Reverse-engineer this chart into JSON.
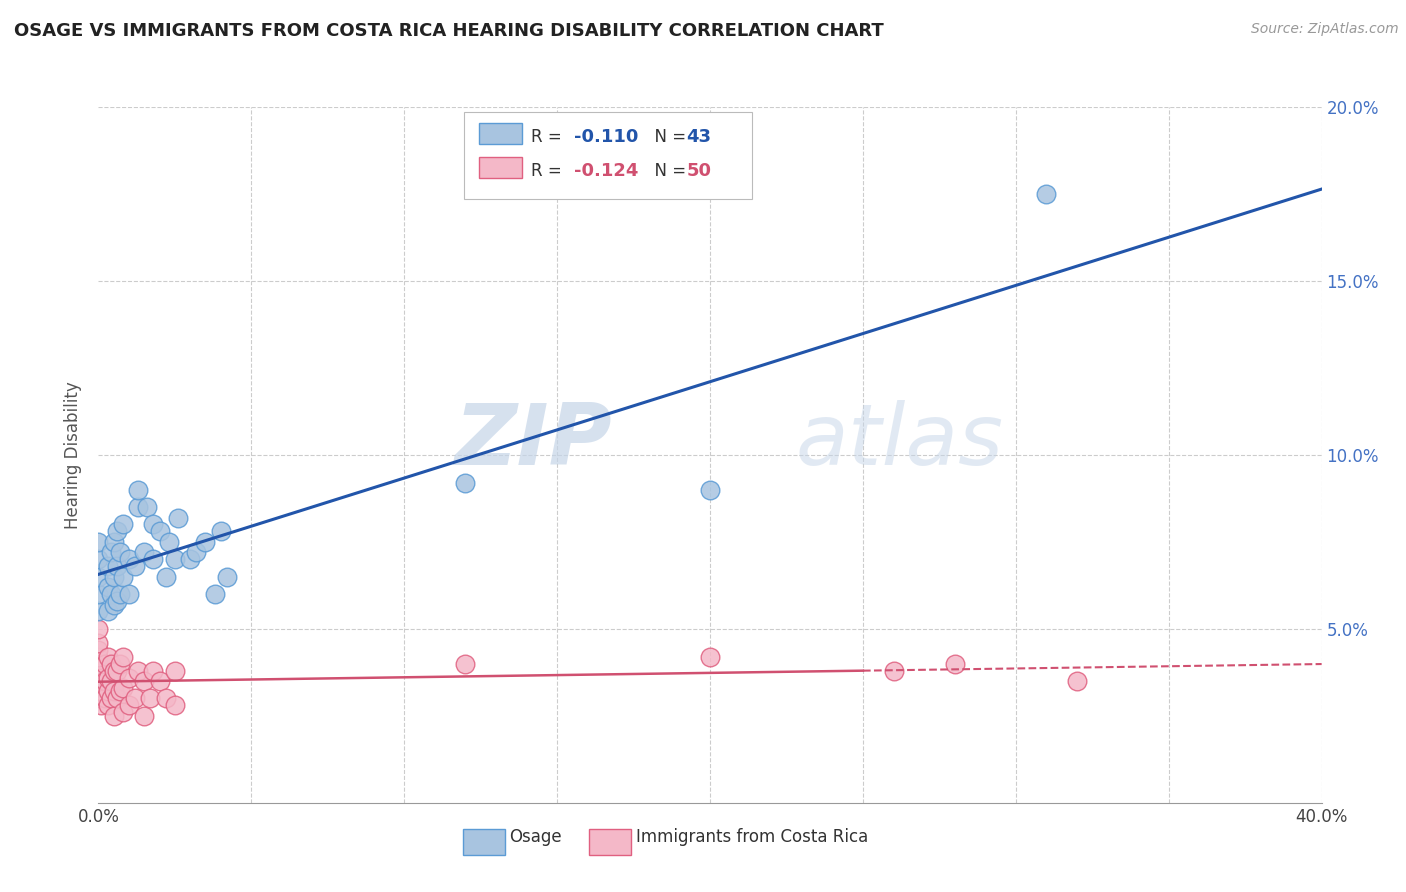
{
  "title": "OSAGE VS IMMIGRANTS FROM COSTA RICA HEARING DISABILITY CORRELATION CHART",
  "source": "Source: ZipAtlas.com",
  "ylabel": "Hearing Disability",
  "x_min": 0.0,
  "x_max": 0.4,
  "y_min": 0.0,
  "y_max": 0.2,
  "osage_color": "#a8c4e0",
  "osage_edge": "#5b9bd5",
  "costa_color": "#f4b8c8",
  "costa_edge": "#e06080",
  "osage_line_color": "#2255aa",
  "costa_line_color": "#d05070",
  "watermark_zip": "ZIP",
  "watermark_atlas": "atlas",
  "background_color": "#ffffff",
  "grid_color": "#cccccc",
  "osage_points_x": [
    0.0,
    0.0,
    0.0,
    0.0,
    0.0,
    0.003,
    0.003,
    0.003,
    0.004,
    0.004,
    0.005,
    0.005,
    0.005,
    0.006,
    0.006,
    0.006,
    0.007,
    0.007,
    0.008,
    0.008,
    0.01,
    0.01,
    0.012,
    0.013,
    0.013,
    0.015,
    0.016,
    0.018,
    0.018,
    0.02,
    0.022,
    0.023,
    0.025,
    0.026,
    0.03,
    0.032,
    0.035,
    0.038,
    0.04,
    0.042,
    0.12,
    0.2,
    0.31
  ],
  "osage_points_y": [
    0.055,
    0.06,
    0.065,
    0.07,
    0.075,
    0.055,
    0.062,
    0.068,
    0.06,
    0.072,
    0.057,
    0.065,
    0.075,
    0.058,
    0.068,
    0.078,
    0.06,
    0.072,
    0.065,
    0.08,
    0.06,
    0.07,
    0.068,
    0.085,
    0.09,
    0.072,
    0.085,
    0.07,
    0.08,
    0.078,
    0.065,
    0.075,
    0.07,
    0.082,
    0.07,
    0.072,
    0.075,
    0.06,
    0.078,
    0.065,
    0.092,
    0.09,
    0.175
  ],
  "costa_points_x": [
    0.0,
    0.0,
    0.0,
    0.0,
    0.0,
    0.0,
    0.0,
    0.0,
    0.0,
    0.0,
    0.001,
    0.001,
    0.001,
    0.002,
    0.002,
    0.002,
    0.003,
    0.003,
    0.003,
    0.003,
    0.004,
    0.004,
    0.004,
    0.005,
    0.005,
    0.005,
    0.006,
    0.006,
    0.007,
    0.007,
    0.008,
    0.008,
    0.008,
    0.01,
    0.01,
    0.012,
    0.013,
    0.015,
    0.015,
    0.017,
    0.018,
    0.02,
    0.022,
    0.025,
    0.025,
    0.12,
    0.2,
    0.26,
    0.28,
    0.32
  ],
  "costa_points_y": [
    0.03,
    0.032,
    0.035,
    0.036,
    0.038,
    0.04,
    0.042,
    0.044,
    0.046,
    0.05,
    0.028,
    0.032,
    0.036,
    0.03,
    0.035,
    0.04,
    0.028,
    0.032,
    0.036,
    0.042,
    0.03,
    0.035,
    0.04,
    0.025,
    0.032,
    0.038,
    0.03,
    0.038,
    0.032,
    0.04,
    0.026,
    0.033,
    0.042,
    0.028,
    0.036,
    0.03,
    0.038,
    0.025,
    0.035,
    0.03,
    0.038,
    0.035,
    0.03,
    0.028,
    0.038,
    0.04,
    0.042,
    0.038,
    0.04,
    0.035
  ]
}
